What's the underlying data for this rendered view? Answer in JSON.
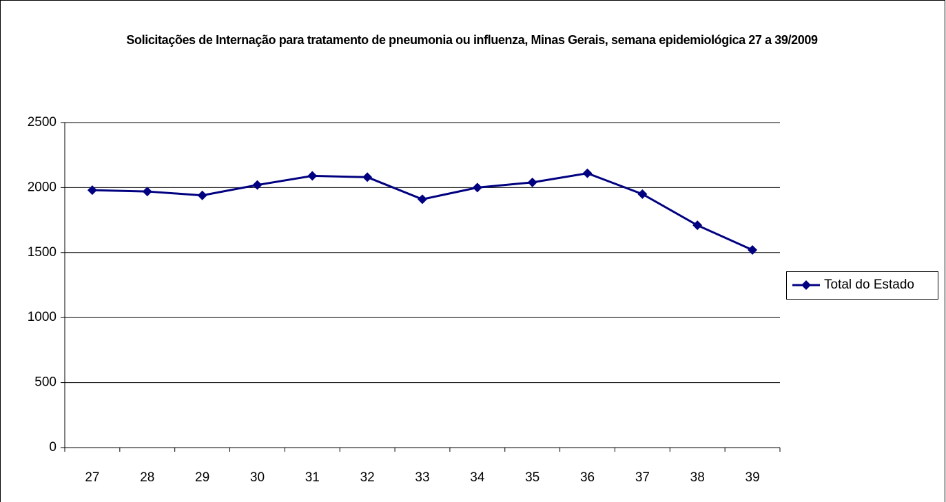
{
  "chart_data": {
    "type": "line",
    "title": "Solicitações de Internação para tratamento de pneumonia ou influenza, Minas Gerais, semana epidemiológica 27 a 39/2009",
    "categories": [
      "27",
      "28",
      "29",
      "30",
      "31",
      "32",
      "33",
      "34",
      "35",
      "36",
      "37",
      "38",
      "39"
    ],
    "series": [
      {
        "name": "Total do Estado",
        "color": "#000080",
        "values": [
          1980,
          1970,
          1940,
          2020,
          2090,
          2080,
          1910,
          2000,
          2040,
          2110,
          1950,
          1710,
          1520
        ]
      }
    ],
    "ylim": [
      0,
      2500
    ],
    "yticks": [
      0,
      500,
      1000,
      1500,
      2000,
      2500
    ],
    "grid": true,
    "legend": "right"
  }
}
